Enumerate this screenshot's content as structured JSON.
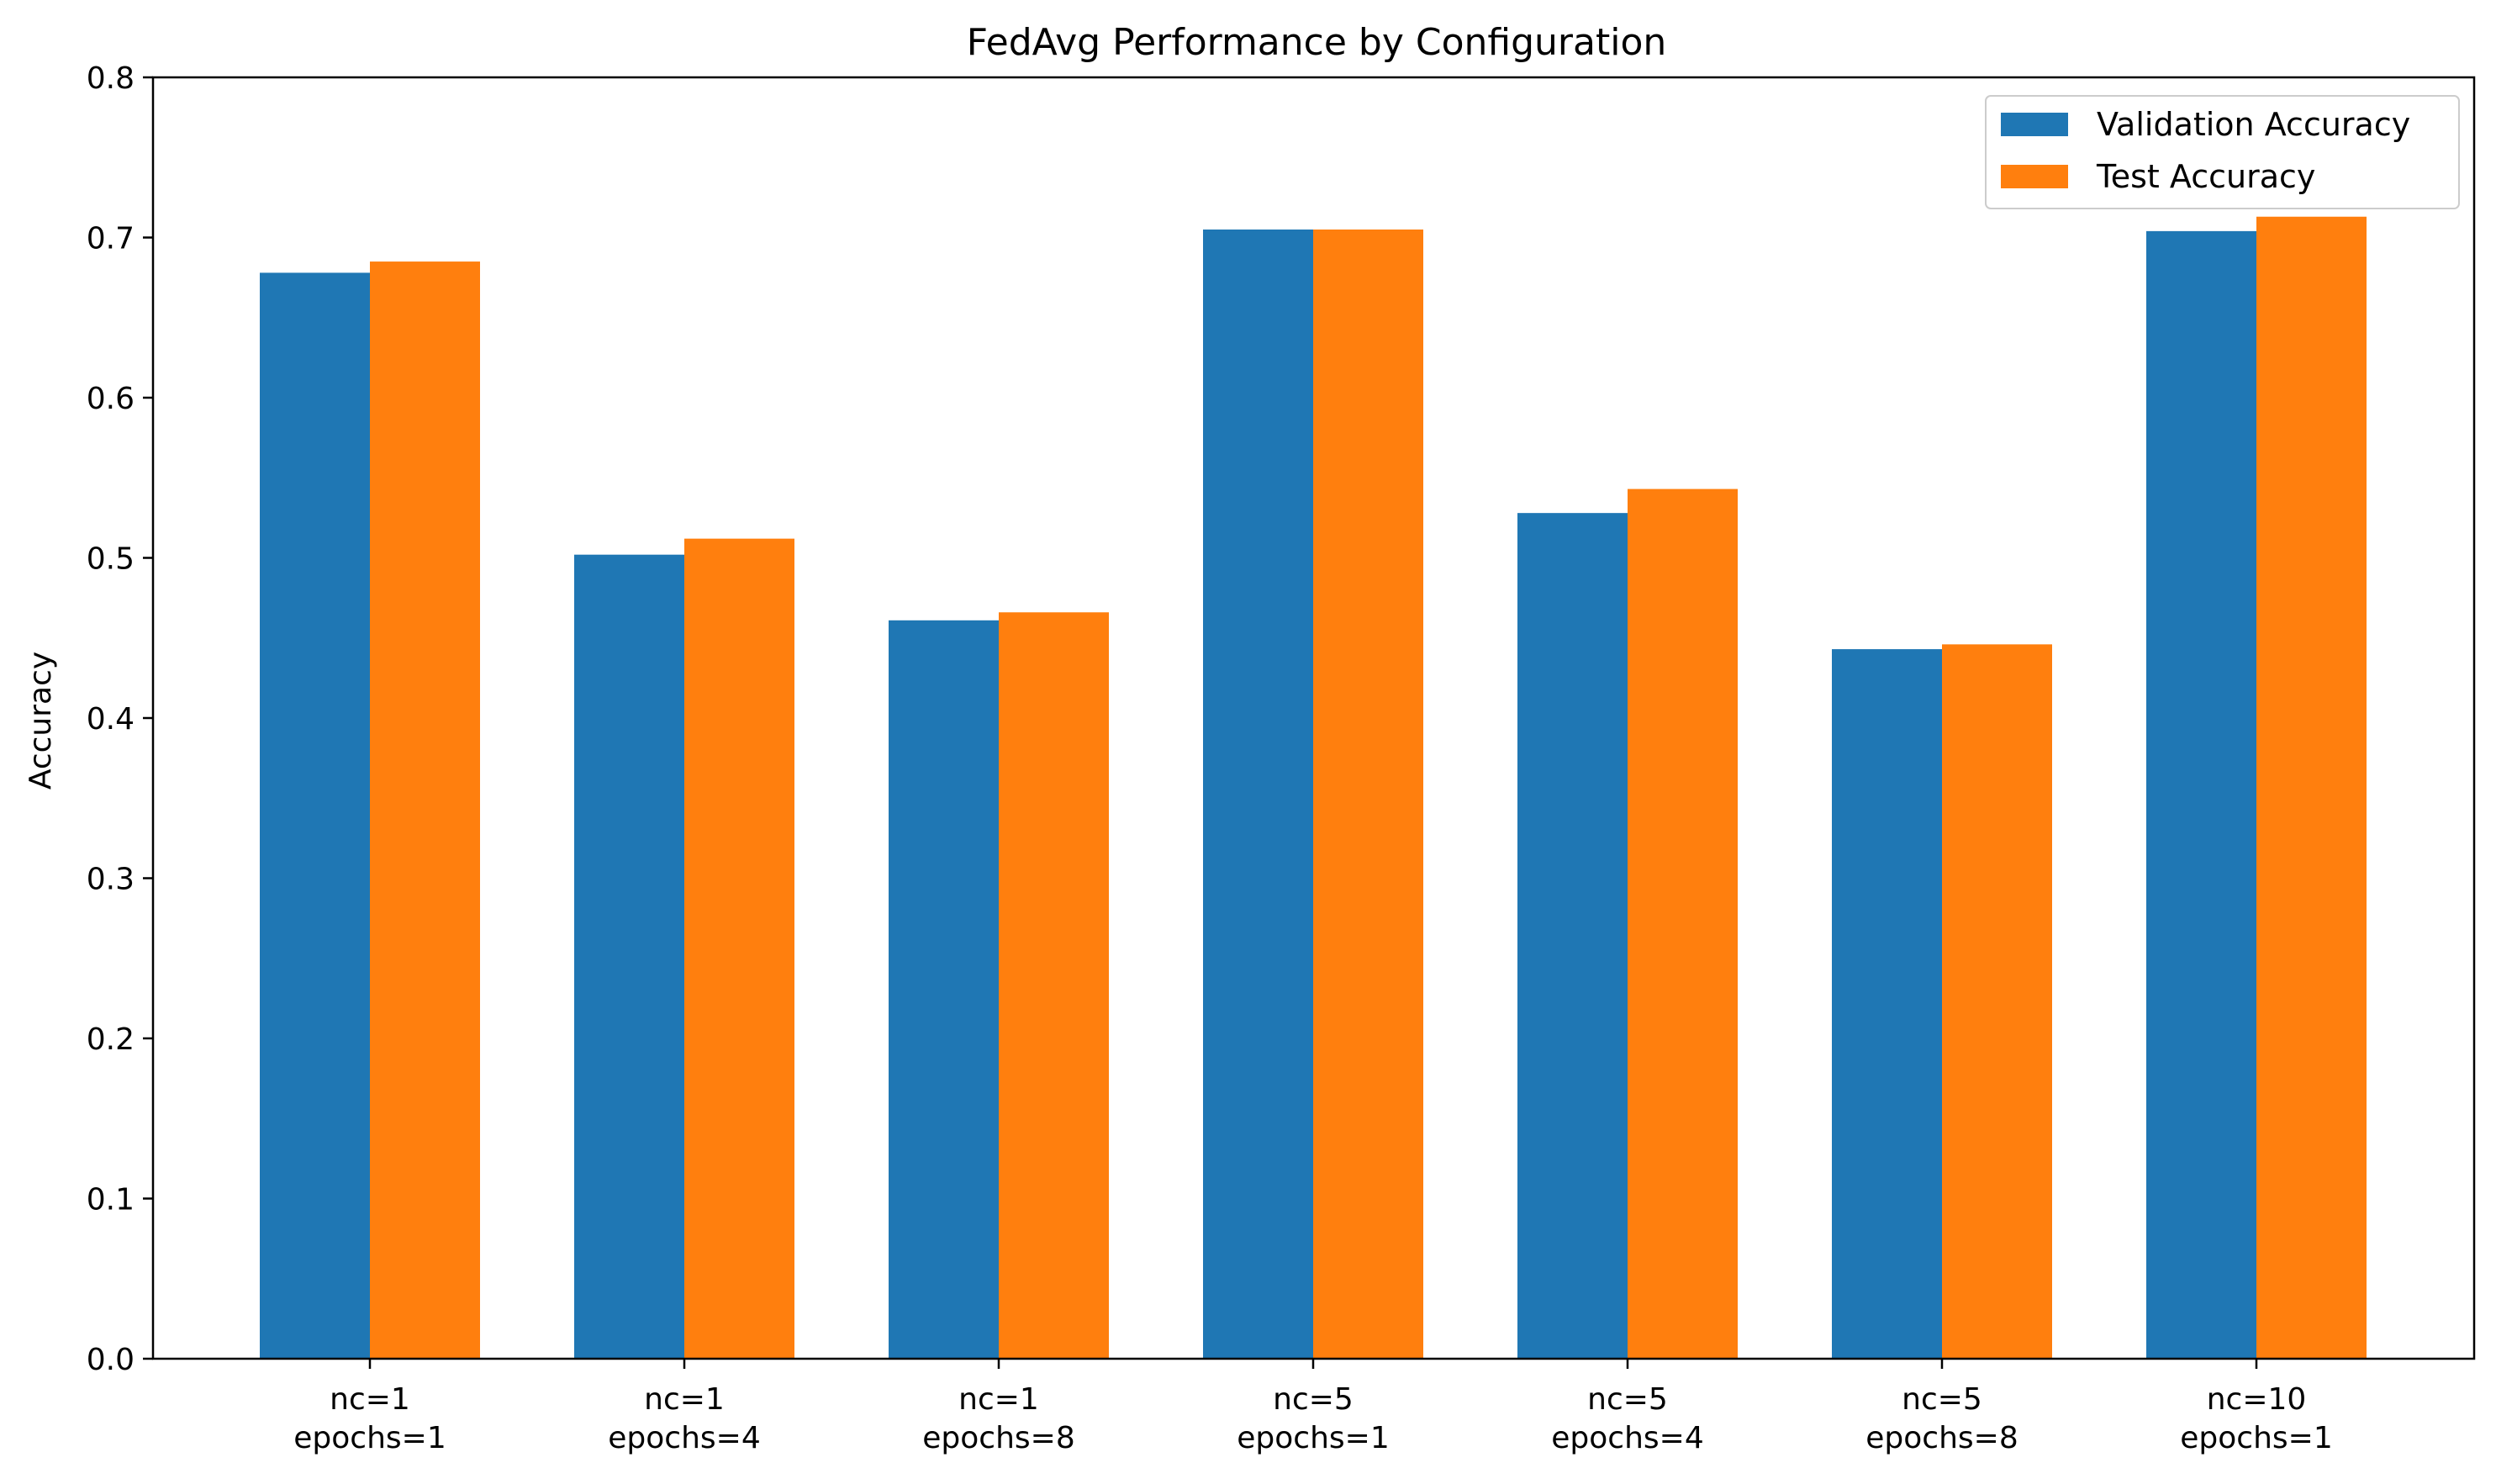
{
  "chart_data": {
    "type": "bar",
    "title": "FedAvg Performance by Configuration",
    "xlabel": "",
    "ylabel": "Accuracy",
    "ylim": [
      0,
      0.8
    ],
    "yticks": [
      0.0,
      0.1,
      0.2,
      0.3,
      0.4,
      0.5,
      0.6,
      0.7,
      0.8
    ],
    "ytick_labels": [
      "0.0",
      "0.1",
      "0.2",
      "0.3",
      "0.4",
      "0.5",
      "0.6",
      "0.7",
      "0.8"
    ],
    "grid": false,
    "legend_position": "top-right",
    "categories": [
      [
        "nc=1",
        "epochs=1"
      ],
      [
        "nc=1",
        "epochs=4"
      ],
      [
        "nc=1",
        "epochs=8"
      ],
      [
        "nc=5",
        "epochs=1"
      ],
      [
        "nc=5",
        "epochs=4"
      ],
      [
        "nc=5",
        "epochs=8"
      ],
      [
        "nc=10",
        "epochs=1"
      ]
    ],
    "series": [
      {
        "name": "Validation Accuracy",
        "color": "#1f77b4",
        "values": [
          0.678,
          0.502,
          0.461,
          0.705,
          0.528,
          0.443,
          0.704
        ]
      },
      {
        "name": "Test Accuracy",
        "color": "#ff7f0e",
        "values": [
          0.685,
          0.512,
          0.466,
          0.705,
          0.543,
          0.446,
          0.713
        ]
      }
    ]
  }
}
